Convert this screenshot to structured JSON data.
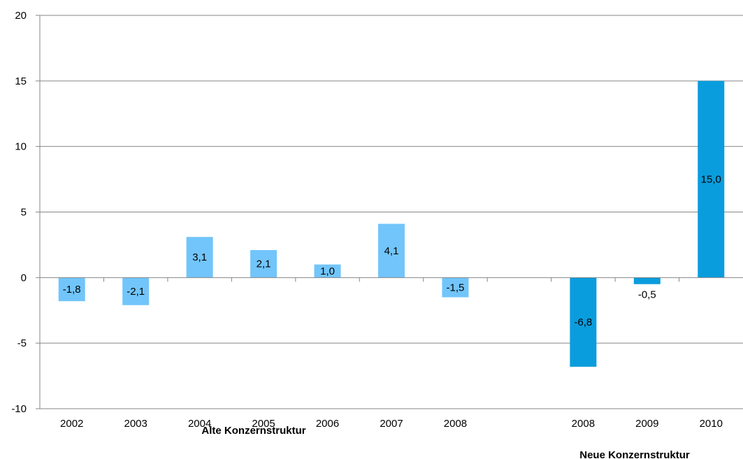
{
  "chart_data": {
    "type": "bar",
    "categories": [
      "2002",
      "2003",
      "2004",
      "2005",
      "2006",
      "2007",
      "2008",
      "",
      "2008",
      "2009",
      "2010"
    ],
    "values": [
      -1.8,
      -2.1,
      3.1,
      2.1,
      1.0,
      4.1,
      -1.5,
      null,
      -6.8,
      -0.5,
      15.0
    ],
    "value_labels": [
      "-1,8",
      "-2,1",
      "3,1",
      "2,1",
      "1,0",
      "4,1",
      "-1,5",
      "",
      "-6,8",
      "-0,5",
      "15,0"
    ],
    "groups": [
      {
        "label": "Alte Konzernstruktur",
        "color": "#72c5fa"
      },
      {
        "label": "Neue Konzernstruktur",
        "color": "#0a9ddd"
      }
    ],
    "bar_group": [
      0,
      0,
      0,
      0,
      0,
      0,
      0,
      -1,
      1,
      1,
      1
    ],
    "y_ticks": [
      "20",
      "15",
      "10",
      "5",
      "0",
      "-5",
      "-10"
    ],
    "ylim": [
      -10,
      20
    ],
    "grid": true,
    "title": "",
    "xlabel": "",
    "ylabel": ""
  }
}
